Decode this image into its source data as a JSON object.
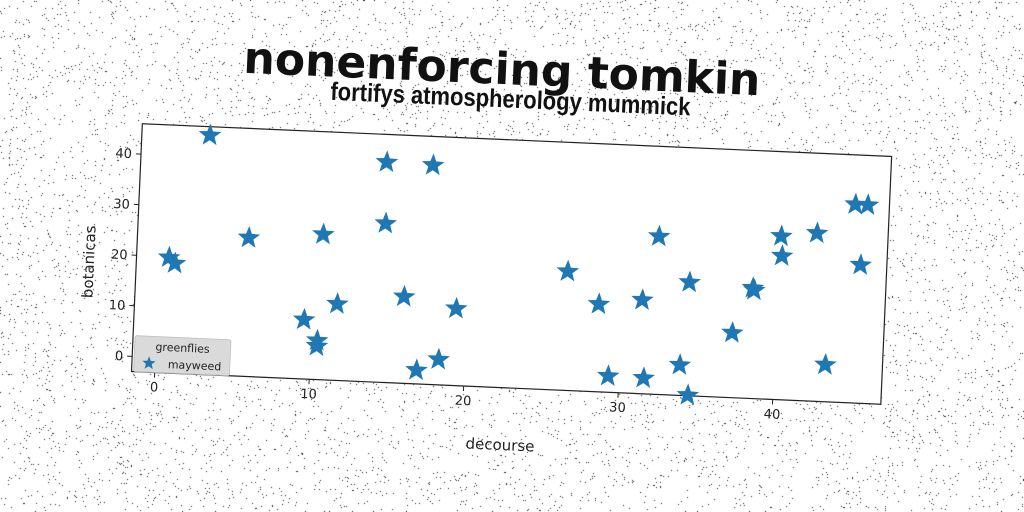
{
  "chart_data": {
    "type": "scatter",
    "title": "nonenforcing tomkin",
    "subtitle": "fortifys atmospherology mummick",
    "xlabel": "decourse",
    "ylabel": "botanicas",
    "xlim": [
      -1.5,
      47
    ],
    "ylim": [
      -3,
      46
    ],
    "xticks": [
      0,
      10,
      20,
      30,
      40
    ],
    "yticks": [
      0,
      10,
      20,
      30,
      40
    ],
    "grid": false,
    "legend": {
      "title": "greenflies",
      "placement": "lower-left"
    },
    "series": [
      {
        "name": "mayweed",
        "marker": "star",
        "color": "#1f77b4",
        "points": [
          {
            "x": 2.9,
            "y": 44.3
          },
          {
            "x": 0.6,
            "y": 19.8
          },
          {
            "x": 1.0,
            "y": 18.7
          },
          {
            "x": 5.7,
            "y": 24.4
          },
          {
            "x": 9.5,
            "y": 8.7
          },
          {
            "x": 10.4,
            "y": 4.7
          },
          {
            "x": 10.4,
            "y": 3.6
          },
          {
            "x": 10.5,
            "y": 25.7
          },
          {
            "x": 11.6,
            "y": 12.1
          },
          {
            "x": 14.4,
            "y": 40.5
          },
          {
            "x": 14.5,
            "y": 28.4
          },
          {
            "x": 15.9,
            "y": 14.1
          },
          {
            "x": 17.4,
            "y": 40.3
          },
          {
            "x": 16.9,
            "y": -0.3
          },
          {
            "x": 18.3,
            "y": 2.0
          },
          {
            "x": 19.3,
            "y": 12.2
          },
          {
            "x": 26.4,
            "y": 20.5
          },
          {
            "x": 28.5,
            "y": 14.3
          },
          {
            "x": 29.3,
            "y": 0.2
          },
          {
            "x": 31.3,
            "y": 15.5
          },
          {
            "x": 31.6,
            "y": 0.1
          },
          {
            "x": 32.2,
            "y": 28.2
          },
          {
            "x": 33.9,
            "y": 3.0
          },
          {
            "x": 34.3,
            "y": 19.4
          },
          {
            "x": 34.5,
            "y": -2.9
          },
          {
            "x": 37.2,
            "y": 9.8
          },
          {
            "x": 38.4,
            "y": 18.8
          },
          {
            "x": 38.5,
            "y": 18.4
          },
          {
            "x": 40.1,
            "y": 29.3
          },
          {
            "x": 40.2,
            "y": 25.4
          },
          {
            "x": 42.4,
            "y": 30.2
          },
          {
            "x": 43.3,
            "y": 4.3
          },
          {
            "x": 44.8,
            "y": 36.2
          },
          {
            "x": 45.3,
            "y": 24.3
          },
          {
            "x": 45.6,
            "y": 36.2
          }
        ]
      }
    ]
  }
}
